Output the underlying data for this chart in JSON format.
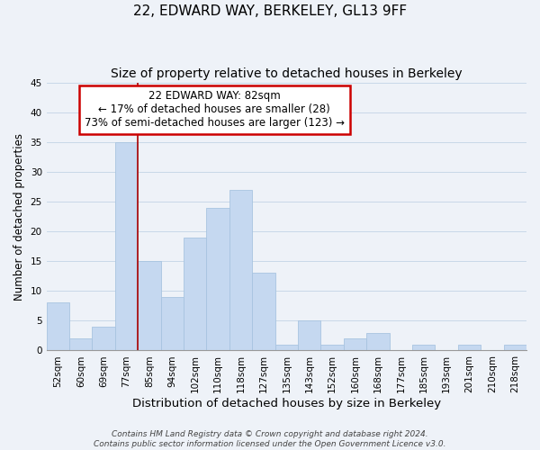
{
  "title": "22, EDWARD WAY, BERKELEY, GL13 9FF",
  "subtitle": "Size of property relative to detached houses in Berkeley",
  "xlabel": "Distribution of detached houses by size in Berkeley",
  "ylabel": "Number of detached properties",
  "bin_labels": [
    "52sqm",
    "60sqm",
    "69sqm",
    "77sqm",
    "85sqm",
    "94sqm",
    "102sqm",
    "110sqm",
    "118sqm",
    "127sqm",
    "135sqm",
    "143sqm",
    "152sqm",
    "160sqm",
    "168sqm",
    "177sqm",
    "185sqm",
    "193sqm",
    "201sqm",
    "210sqm",
    "218sqm"
  ],
  "bar_values": [
    8,
    2,
    4,
    35,
    15,
    9,
    19,
    24,
    27,
    13,
    1,
    5,
    1,
    2,
    3,
    0,
    1,
    0,
    1,
    0,
    1
  ],
  "bar_color": "#c5d8f0",
  "bar_edge_color": "#a8c4e0",
  "grid_color": "#c8d8e8",
  "vline_x_index": 3.5,
  "vline_color": "#aa0000",
  "annotation_line1": "22 EDWARD WAY: 82sqm",
  "annotation_line2": "← 17% of detached houses are smaller (28)",
  "annotation_line3": "73% of semi-detached houses are larger (123) →",
  "annotation_box_edge": "#cc0000",
  "annotation_fontsize": 8.5,
  "ylim": [
    0,
    45
  ],
  "yticks": [
    0,
    5,
    10,
    15,
    20,
    25,
    30,
    35,
    40,
    45
  ],
  "footer_text": "Contains HM Land Registry data © Crown copyright and database right 2024.\nContains public sector information licensed under the Open Government Licence v3.0.",
  "title_fontsize": 11,
  "subtitle_fontsize": 10,
  "xlabel_fontsize": 9.5,
  "ylabel_fontsize": 8.5,
  "tick_fontsize": 7.5,
  "footer_fontsize": 6.5,
  "bg_color": "#eef2f8"
}
